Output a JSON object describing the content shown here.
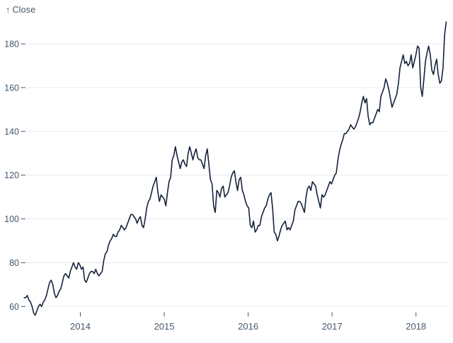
{
  "header": {
    "arrow": "↑",
    "label": "Close"
  },
  "colors": {
    "background": "#ffffff",
    "line": "#15233b",
    "grid": "#e5e9ec",
    "text": "#45586c",
    "tick": "#45586c"
  },
  "chart_data": {
    "type": "line",
    "title": "",
    "ylabel": "Close",
    "xlabel": "",
    "legend": "none",
    "grid": "horizontal-only",
    "x_start": 2013.33,
    "x_end": 2018.36,
    "x_ticks": [
      2014,
      2015,
      2016,
      2017,
      2018
    ],
    "x_tick_labels": [
      "2014",
      "2015",
      "2016",
      "2017",
      "2018"
    ],
    "y_ticks": [
      60,
      80,
      100,
      120,
      140,
      160,
      180
    ],
    "y_tick_labels": [
      "60",
      "80",
      "100",
      "120",
      "140",
      "160",
      "180"
    ],
    "ylim": [
      56,
      190
    ],
    "series": [
      {
        "name": "Close",
        "values": [
          64,
          64,
          65,
          63,
          62,
          60,
          57,
          56,
          58,
          60,
          61,
          60,
          62,
          63,
          65,
          68,
          71,
          72,
          70,
          66,
          64,
          65,
          67,
          68,
          71,
          74,
          75,
          74,
          73,
          76,
          78,
          80,
          78,
          77,
          80,
          79,
          77,
          78,
          72,
          71,
          73,
          75,
          76,
          76,
          75,
          77,
          75,
          74,
          75,
          76,
          81,
          84,
          85,
          88,
          90,
          91,
          93,
          92,
          92,
          94,
          95,
          97,
          96,
          95,
          96,
          98,
          100,
          102,
          102,
          101,
          100,
          98,
          100,
          101,
          97,
          96,
          100,
          105,
          108,
          109,
          112,
          115,
          117,
          119,
          112,
          108,
          111,
          110,
          109,
          106,
          112,
          117,
          119,
          127,
          129,
          133,
          129,
          126,
          123,
          126,
          127,
          125,
          124,
          130,
          133,
          130,
          127,
          130,
          132,
          128,
          127,
          127,
          125,
          123,
          129,
          132,
          125,
          118,
          116,
          106,
          103,
          113,
          112,
          110,
          114,
          115,
          110,
          111,
          112,
          115,
          119,
          121,
          122,
          117,
          113,
          118,
          119,
          113,
          111,
          108,
          106,
          105,
          97,
          96,
          99,
          94,
          95,
          97,
          97,
          101,
          103,
          105,
          106,
          109,
          111,
          112,
          105,
          94,
          93,
          90,
          92,
          95,
          97,
          98,
          99,
          95,
          96,
          95,
          97,
          99,
          104,
          106,
          108,
          108,
          107,
          105,
          103,
          110,
          114,
          115,
          113,
          117,
          116,
          115,
          111,
          108,
          105,
          111,
          110,
          111,
          113,
          115,
          117,
          116,
          118,
          120,
          121,
          127,
          131,
          134,
          136,
          139,
          139,
          140,
          141,
          143,
          142,
          141,
          142,
          144,
          146,
          149,
          153,
          156,
          153,
          155,
          147,
          143,
          144,
          144,
          146,
          148,
          150,
          149,
          156,
          158,
          160,
          164,
          162,
          159,
          155,
          151,
          153,
          155,
          157,
          162,
          169,
          172,
          175,
          171,
          172,
          170,
          171,
          175,
          169,
          172,
          175,
          179,
          178,
          160,
          156,
          164,
          172,
          176,
          179,
          175,
          168,
          166,
          170,
          173,
          166,
          162,
          163,
          169,
          184,
          190
        ]
      }
    ]
  }
}
